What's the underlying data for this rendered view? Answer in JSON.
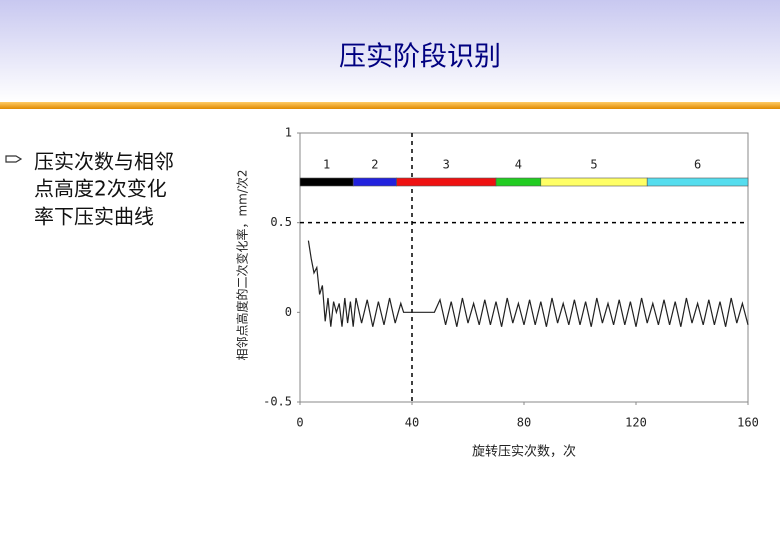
{
  "title": "压实阶段识别",
  "bullet": [
    "压实次数与相邻",
    "点高度2次变化",
    "率下压实曲线"
  ],
  "chart_data": {
    "type": "line",
    "xlabel": "旋转压实次数，次",
    "ylabel": "相邻点高度的二次变化率，mm/次2",
    "xlim": [
      0,
      160
    ],
    "xticks": [
      0,
      40,
      80,
      120,
      160
    ],
    "ylim": [
      -0.5,
      1
    ],
    "yticks": [
      -0.5,
      0,
      0.5,
      1
    ],
    "xgrid": [
      40
    ],
    "ygrid": [
      0.5
    ],
    "phases": [
      {
        "label": "1",
        "start": 0,
        "end": 19,
        "color": "#000000"
      },
      {
        "label": "2",
        "start": 19,
        "end": 34.5,
        "color": "#2222dd"
      },
      {
        "label": "3",
        "start": 34.5,
        "end": 70,
        "color": "#ee1111"
      },
      {
        "label": "4",
        "start": 70,
        "end": 86,
        "color": "#22cc22"
      },
      {
        "label": "5",
        "start": 86,
        "end": 124,
        "color": "#ffff66"
      },
      {
        "label": "6",
        "start": 124,
        "end": 160,
        "color": "#55ddee"
      }
    ],
    "series": [
      {
        "color": "#222222",
        "x": [
          3,
          4,
          5,
          6,
          7,
          8,
          9,
          10,
          11,
          12,
          13,
          14,
          15,
          16,
          17,
          18,
          19,
          20,
          22,
          24,
          26,
          28,
          30,
          32,
          34,
          36,
          37,
          48,
          50,
          52,
          54,
          56,
          58,
          60,
          62,
          64,
          66,
          68,
          70,
          72,
          74,
          76,
          78,
          80,
          82,
          84,
          86,
          88,
          90,
          92,
          94,
          96,
          98,
          100,
          102,
          104,
          106,
          108,
          110,
          112,
          114,
          116,
          118,
          120,
          122,
          124,
          126,
          128,
          130,
          132,
          134,
          136,
          138,
          140,
          142,
          144,
          146,
          148,
          150,
          152,
          154,
          156,
          158,
          160
        ],
        "values": [
          0.4,
          0.3,
          0.22,
          0.25,
          0.1,
          0.15,
          -0.05,
          0.08,
          -0.08,
          0.06,
          0,
          0.05,
          -0.08,
          0.08,
          -0.06,
          0.06,
          -0.08,
          0.08,
          -0.06,
          0.07,
          -0.08,
          0.06,
          -0.07,
          0.08,
          -0.06,
          0.05,
          0,
          0,
          0.07,
          -0.07,
          0.06,
          -0.08,
          0.08,
          -0.06,
          0.05,
          -0.07,
          0.07,
          -0.07,
          0.06,
          -0.08,
          0.08,
          -0.06,
          0.05,
          -0.07,
          0.07,
          -0.07,
          0.06,
          -0.08,
          0.08,
          -0.06,
          0.05,
          -0.07,
          0.07,
          -0.07,
          0.06,
          -0.08,
          0.08,
          -0.06,
          0.05,
          -0.07,
          0.07,
          -0.07,
          0.06,
          -0.08,
          0.08,
          -0.06,
          0.05,
          -0.07,
          0.07,
          -0.07,
          0.06,
          -0.08,
          0.08,
          -0.06,
          0.05,
          -0.07,
          0.07,
          -0.07,
          0.06,
          -0.08,
          0.08,
          -0.06,
          0.05,
          -0.07
        ]
      }
    ]
  }
}
